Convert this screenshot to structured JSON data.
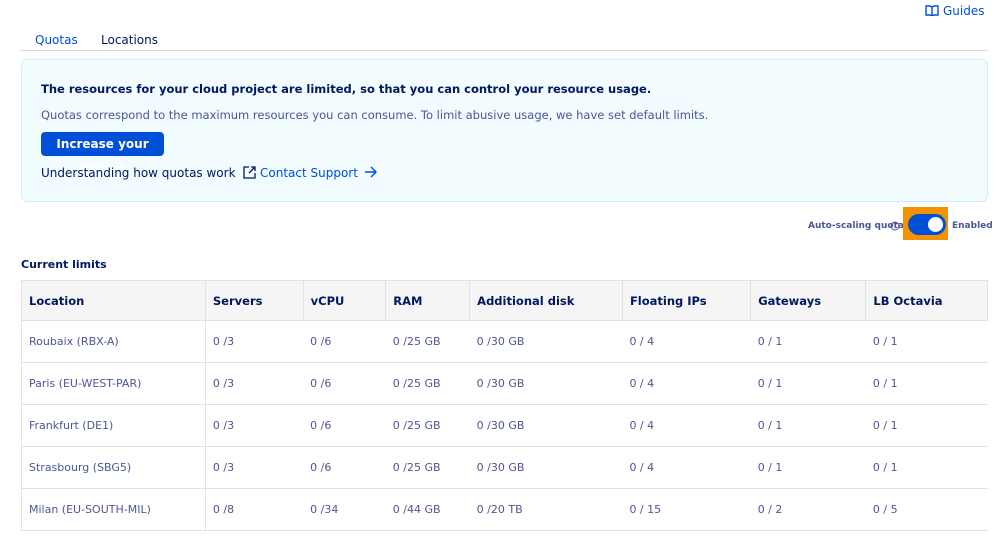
{
  "header": {
    "guides": "Guides"
  },
  "tabs": [
    "Quotas",
    "Locations"
  ],
  "info": {
    "title": "The resources for your cloud project are limited, so that you can control your resource usage.",
    "text": "Quotas correspond to the maximum resources you can consume. To limit abusive usage, we have set default limits.",
    "button": "Increase your quotas",
    "link_guide": "Understanding how quotas work",
    "link_support": "Contact Support"
  },
  "autoscaling": {
    "label": "Auto-scaling quota",
    "state": "Enabled"
  },
  "table": {
    "title": "Current limits",
    "columns": [
      "Location",
      "Servers",
      "vCPU",
      "RAM",
      "Additional disk",
      "Floating IPs",
      "Gateways",
      "LB Octavia"
    ],
    "rows": [
      [
        "Roubaix (RBX-A)",
        "0 /3",
        "0 /6",
        "0 /25 GB",
        "0 /30 GB",
        "0 / 4",
        "0 / 1",
        "0 / 1"
      ],
      [
        "Paris (EU-WEST-PAR)",
        "0 /3",
        "0 /6",
        "0 /25 GB",
        "0 /30 GB",
        "0 / 4",
        "0 / 1",
        "0 / 1"
      ],
      [
        "Frankfurt (DE1)",
        "0 /3",
        "0 /6",
        "0 /25 GB",
        "0 /30 GB",
        "0 / 4",
        "0 / 1",
        "0 / 1"
      ],
      [
        "Strasbourg (SBG5)",
        "0 /3",
        "0 /6",
        "0 /25 GB",
        "0 /30 GB",
        "0 / 4",
        "0 / 1",
        "0 / 1"
      ],
      [
        "Milan (EU-SOUTH-MIL)",
        "0 /8",
        "0 /34",
        "0 /44 GB",
        "0 /20 TB",
        "0 / 15",
        "0 / 2",
        "0 / 5"
      ]
    ]
  }
}
